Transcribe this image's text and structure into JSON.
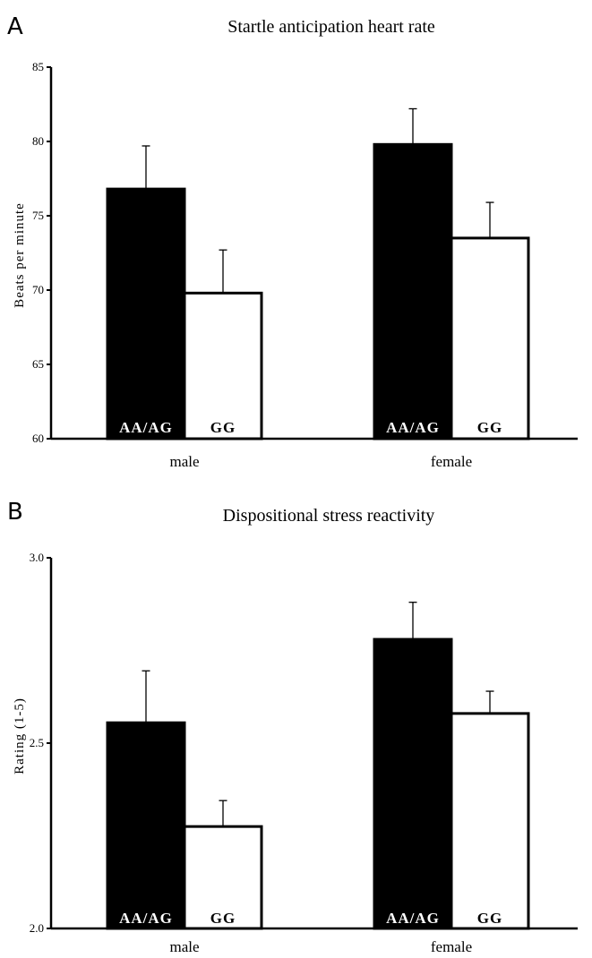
{
  "chart_data": [
    {
      "panel": "A",
      "type": "bar",
      "title": "Startle anticipation heart rate",
      "ylabel": "Beats per minute",
      "xlabel": "",
      "ylim": [
        60,
        85
      ],
      "yticks": [
        "60",
        "65",
        "70",
        "75",
        "80",
        "85"
      ],
      "categories": [
        "male",
        "female"
      ],
      "series": [
        {
          "name": "AA/AG",
          "color": "#000000",
          "values": [
            76.8,
            79.8
          ],
          "errors": [
            2.9,
            2.4
          ]
        },
        {
          "name": "GG",
          "color": "#ffffff",
          "values": [
            69.8,
            73.5
          ],
          "errors": [
            2.9,
            2.4
          ]
        }
      ],
      "grid": false
    },
    {
      "panel": "B",
      "type": "bar",
      "title": "Dispositional stress reactivity",
      "ylabel": "Rating (1-5)",
      "xlabel": "",
      "ylim": [
        2.0,
        3.0
      ],
      "yticks": [
        "2.0",
        "2.5",
        "3.0"
      ],
      "categories": [
        "male",
        "female"
      ],
      "series": [
        {
          "name": "AA/AG",
          "color": "#000000",
          "values": [
            2.555,
            2.78
          ],
          "errors": [
            0.14,
            0.1
          ]
        },
        {
          "name": "GG",
          "color": "#ffffff",
          "values": [
            2.275,
            2.58
          ],
          "errors": [
            0.07,
            0.06
          ]
        }
      ],
      "grid": false
    }
  ]
}
